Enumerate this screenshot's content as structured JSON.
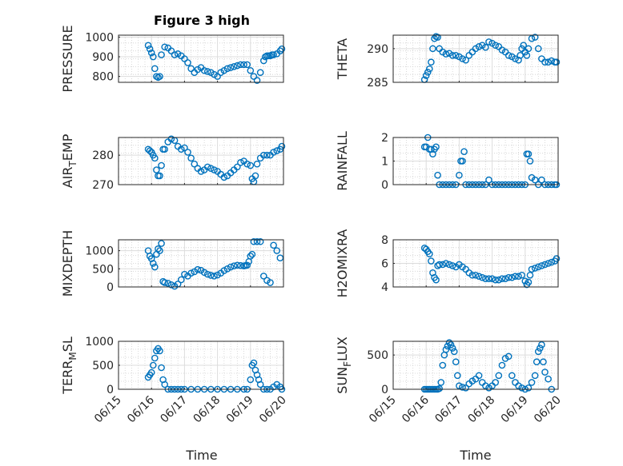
{
  "figure": {
    "title": "Figure 3 high",
    "xlabel": "Time",
    "x_ticks": [
      "06/15",
      "06/16",
      "06/17",
      "06/18",
      "06/19",
      "06/20"
    ],
    "marker_color": "#0072BD",
    "grid": true
  },
  "chart_data": [
    {
      "type": "scatter",
      "ylabel": "PRESSURE",
      "ylim": [
        770,
        1010
      ],
      "yticks": [
        "800",
        "900",
        "1000"
      ],
      "x": [
        0.9,
        0.95,
        1.0,
        1.05,
        1.1,
        1.15,
        1.2,
        1.25,
        1.3,
        1.4,
        1.5,
        1.6,
        1.7,
        1.8,
        1.9,
        2.0,
        2.1,
        2.2,
        2.3,
        2.4,
        2.5,
        2.6,
        2.7,
        2.8,
        2.9,
        3.0,
        3.1,
        3.2,
        3.3,
        3.4,
        3.5,
        3.6,
        3.7,
        3.8,
        3.9,
        4.0,
        4.1,
        4.2,
        4.3,
        4.4,
        4.45,
        4.5,
        4.55,
        4.6,
        4.65,
        4.7,
        4.8,
        4.9,
        4.95
      ],
      "y": [
        958,
        940,
        920,
        900,
        840,
        800,
        795,
        800,
        910,
        950,
        945,
        930,
        910,
        915,
        905,
        890,
        870,
        840,
        820,
        835,
        845,
        830,
        825,
        820,
        810,
        800,
        820,
        830,
        840,
        845,
        850,
        855,
        860,
        860,
        860,
        830,
        800,
        780,
        820,
        880,
        900,
        905,
        905,
        905,
        910,
        910,
        915,
        930,
        940
      ]
    },
    {
      "type": "scatter",
      "ylabel": "THETA",
      "ylim": [
        285,
        292
      ],
      "yticks": [
        "285",
        "290"
      ],
      "x": [
        0.95,
        1.0,
        1.05,
        1.1,
        1.15,
        1.2,
        1.25,
        1.3,
        1.35,
        1.4,
        1.5,
        1.6,
        1.7,
        1.8,
        1.9,
        2.0,
        2.1,
        2.2,
        2.3,
        2.4,
        2.5,
        2.6,
        2.7,
        2.8,
        2.9,
        3.0,
        3.1,
        3.2,
        3.3,
        3.4,
        3.5,
        3.6,
        3.7,
        3.8,
        3.85,
        3.9,
        3.95,
        4.0,
        4.05,
        4.1,
        4.2,
        4.3,
        4.4,
        4.5,
        4.6,
        4.7,
        4.8,
        4.9,
        4.95
      ],
      "y": [
        285.4,
        286,
        286.5,
        287,
        288,
        290,
        291.5,
        291.8,
        291.7,
        290,
        289.5,
        289.2,
        289.3,
        289,
        289,
        288.8,
        288.5,
        288.3,
        289,
        289.5,
        290,
        290.3,
        290.5,
        290.2,
        291,
        290.8,
        290.5,
        290.3,
        289.8,
        289.5,
        289,
        288.8,
        288.5,
        288.3,
        289,
        290,
        290.5,
        289.5,
        289,
        290,
        291.5,
        291.7,
        290,
        288.5,
        288,
        288,
        288.2,
        288,
        288
      ]
    },
    {
      "type": "scatter",
      "ylabel": "AIR_TEMP",
      "ylim": [
        270,
        286
      ],
      "yticks": [
        "270",
        "280"
      ],
      "x": [
        0.9,
        0.95,
        1.0,
        1.05,
        1.1,
        1.15,
        1.2,
        1.25,
        1.3,
        1.35,
        1.4,
        1.5,
        1.6,
        1.7,
        1.8,
        1.9,
        2.0,
        2.1,
        2.2,
        2.3,
        2.4,
        2.5,
        2.6,
        2.7,
        2.8,
        2.9,
        3.0,
        3.1,
        3.2,
        3.3,
        3.4,
        3.5,
        3.6,
        3.7,
        3.8,
        3.9,
        4.0,
        4.05,
        4.1,
        4.15,
        4.2,
        4.3,
        4.4,
        4.5,
        4.6,
        4.7,
        4.8,
        4.9,
        4.95
      ],
      "y": [
        282,
        281.5,
        281,
        280,
        279,
        275,
        273,
        273,
        276.5,
        282,
        282,
        284.5,
        285.5,
        285,
        283,
        282,
        282.5,
        281,
        279,
        277,
        275.5,
        274.5,
        275,
        276,
        275.5,
        275,
        274.5,
        273.5,
        272.5,
        273,
        274,
        275,
        276,
        277.5,
        278,
        277,
        276.5,
        272,
        271,
        273,
        277,
        279,
        280,
        280,
        280,
        281,
        281.5,
        282,
        283
      ]
    },
    {
      "type": "scatter",
      "ylabel": "RAINFALL",
      "ylim": [
        0,
        2
      ],
      "yticks": [
        "0",
        "1",
        "2"
      ],
      "x": [
        0.95,
        1.0,
        1.05,
        1.1,
        1.15,
        1.2,
        1.25,
        1.3,
        1.35,
        1.4,
        1.5,
        1.6,
        1.7,
        1.8,
        1.9,
        2.0,
        2.05,
        2.1,
        2.15,
        2.2,
        2.3,
        2.4,
        2.5,
        2.6,
        2.7,
        2.8,
        2.9,
        3.0,
        3.1,
        3.2,
        3.3,
        3.4,
        3.5,
        3.6,
        3.7,
        3.8,
        3.9,
        4.0,
        4.05,
        4.1,
        4.15,
        4.2,
        4.3,
        4.4,
        4.5,
        4.6,
        4.7,
        4.8,
        4.9,
        4.95
      ],
      "y": [
        1.6,
        1.6,
        2.0,
        1.5,
        1.5,
        1.3,
        1.5,
        1.6,
        0.4,
        0,
        0,
        0,
        0,
        0,
        0,
        0.4,
        1.0,
        1.0,
        1.4,
        0,
        0,
        0,
        0,
        0,
        0,
        0,
        0.2,
        0,
        0,
        0,
        0,
        0,
        0,
        0,
        0,
        0,
        0,
        0,
        1.3,
        1.3,
        1.0,
        0.3,
        0.2,
        0,
        0.2,
        0,
        0,
        0,
        0,
        0
      ]
    },
    {
      "type": "scatter",
      "ylabel": "MIXDEPTH",
      "ylim": [
        0,
        1300
      ],
      "yticks": [
        "0",
        "500",
        "1000"
      ],
      "x": [
        0.9,
        0.95,
        1.0,
        1.05,
        1.1,
        1.15,
        1.2,
        1.25,
        1.3,
        1.35,
        1.4,
        1.5,
        1.6,
        1.7,
        1.8,
        1.9,
        2.0,
        2.1,
        2.2,
        2.3,
        2.4,
        2.5,
        2.6,
        2.7,
        2.8,
        2.9,
        3.0,
        3.1,
        3.2,
        3.3,
        3.4,
        3.5,
        3.6,
        3.7,
        3.8,
        3.85,
        3.9,
        3.95,
        4.0,
        4.05,
        4.1,
        4.2,
        4.3,
        4.4,
        4.5,
        4.6,
        4.7,
        4.8,
        4.9
      ],
      "y": [
        1000,
        850,
        780,
        650,
        550,
        900,
        1050,
        1000,
        1200,
        150,
        120,
        100,
        60,
        20,
        80,
        200,
        350,
        300,
        380,
        420,
        480,
        460,
        400,
        350,
        320,
        300,
        330,
        380,
        450,
        500,
        550,
        580,
        600,
        590,
        580,
        590,
        600,
        700,
        850,
        900,
        1250,
        1250,
        1250,
        300,
        180,
        120,
        1150,
        1000,
        800
      ]
    },
    {
      "type": "scatter",
      "ylabel": "H2OMIXRA",
      "ylim": [
        4,
        8
      ],
      "yticks": [
        "4",
        "6",
        "8"
      ],
      "x": [
        0.95,
        1.0,
        1.05,
        1.1,
        1.15,
        1.2,
        1.25,
        1.3,
        1.35,
        1.4,
        1.5,
        1.6,
        1.7,
        1.8,
        1.9,
        2.0,
        2.1,
        2.2,
        2.3,
        2.4,
        2.5,
        2.6,
        2.7,
        2.8,
        2.9,
        3.0,
        3.1,
        3.2,
        3.3,
        3.4,
        3.5,
        3.6,
        3.7,
        3.8,
        3.9,
        4.0,
        4.05,
        4.1,
        4.15,
        4.2,
        4.3,
        4.4,
        4.5,
        4.6,
        4.7,
        4.8,
        4.9,
        4.95
      ],
      "y": [
        7.3,
        7.2,
        7.0,
        6.8,
        6.2,
        5.2,
        4.8,
        4.6,
        5.8,
        5.9,
        5.9,
        6.0,
        5.9,
        5.8,
        5.7,
        5.9,
        5.7,
        5.5,
        5.2,
        5.0,
        5.0,
        4.9,
        4.8,
        4.7,
        4.7,
        4.7,
        4.6,
        4.6,
        4.7,
        4.7,
        4.8,
        4.8,
        4.9,
        4.9,
        5.0,
        4.5,
        4.2,
        4.4,
        5.0,
        5.5,
        5.6,
        5.7,
        5.8,
        5.9,
        6.0,
        6.1,
        6.2,
        6.4
      ]
    },
    {
      "type": "scatter",
      "ylabel": "TERR_MSL",
      "ylim": [
        0,
        1000
      ],
      "yticks": [
        "0",
        "500",
        "1000"
      ],
      "x": [
        0.9,
        0.95,
        1.0,
        1.05,
        1.1,
        1.15,
        1.2,
        1.25,
        1.3,
        1.35,
        1.4,
        1.5,
        1.6,
        1.7,
        1.8,
        1.9,
        2.0,
        2.2,
        2.4,
        2.6,
        2.8,
        3.0,
        3.2,
        3.4,
        3.6,
        3.8,
        3.9,
        4.0,
        4.05,
        4.1,
        4.15,
        4.2,
        4.25,
        4.3,
        4.4,
        4.5,
        4.6,
        4.7,
        4.8,
        4.9,
        4.95
      ],
      "y": [
        250,
        300,
        350,
        500,
        650,
        800,
        850,
        800,
        450,
        200,
        100,
        0,
        0,
        0,
        0,
        0,
        0,
        0,
        0,
        0,
        0,
        0,
        0,
        0,
        0,
        0,
        0,
        200,
        500,
        550,
        400,
        300,
        200,
        100,
        0,
        0,
        0,
        50,
        100,
        50,
        0
      ]
    },
    {
      "type": "scatter",
      "ylabel": "SUN_FLUX",
      "ylim": [
        0,
        700
      ],
      "yticks": [
        "0",
        "500"
      ],
      "x": [
        0.95,
        1.0,
        1.05,
        1.1,
        1.15,
        1.2,
        1.25,
        1.3,
        1.35,
        1.4,
        1.45,
        1.5,
        1.55,
        1.6,
        1.65,
        1.7,
        1.75,
        1.8,
        1.85,
        1.9,
        1.95,
        2.0,
        2.1,
        2.2,
        2.3,
        2.4,
        2.5,
        2.6,
        2.7,
        2.8,
        2.9,
        3.0,
        3.1,
        3.2,
        3.3,
        3.4,
        3.5,
        3.6,
        3.7,
        3.8,
        3.9,
        4.0,
        4.1,
        4.2,
        4.3,
        4.35,
        4.4,
        4.45,
        4.5,
        4.55,
        4.6,
        4.7,
        4.8
      ],
      "y": [
        0,
        0,
        0,
        0,
        0,
        0,
        0,
        0,
        0,
        10,
        100,
        350,
        500,
        580,
        630,
        680,
        650,
        600,
        550,
        400,
        200,
        50,
        30,
        20,
        80,
        120,
        150,
        200,
        100,
        50,
        20,
        50,
        100,
        200,
        350,
        450,
        480,
        200,
        100,
        50,
        20,
        0,
        20,
        100,
        200,
        400,
        550,
        600,
        650,
        400,
        250,
        150,
        0
      ]
    }
  ]
}
